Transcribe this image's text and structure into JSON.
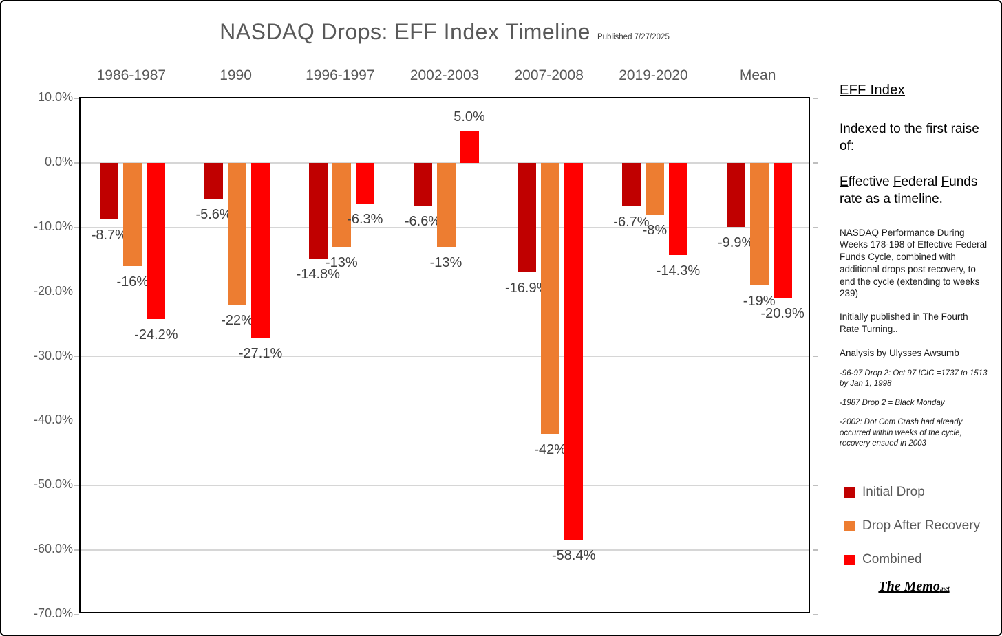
{
  "title": "NASDAQ Drops: EFF Index Timeline",
  "published": "Published 7/27/2025",
  "chart_data": {
    "type": "bar",
    "title": "NASDAQ Drops: EFF Index Timeline",
    "categories": [
      "1986-1987",
      "1990",
      "1996-1997",
      "2002-2003",
      "2007-2008",
      "2019-2020",
      "Mean"
    ],
    "series": [
      {
        "name": "Initial Drop",
        "color": "#C00000",
        "values": [
          -8.7,
          -5.6,
          -14.8,
          -6.6,
          -16.9,
          -6.7,
          -9.9
        ],
        "labels": [
          "-8.7%",
          "-5.6%",
          "-14.8%",
          "-6.6%",
          "-16.9%",
          "-6.7%",
          "-9.9%"
        ]
      },
      {
        "name": "Drop After Recovery",
        "color": "#ED7D31",
        "values": [
          -16,
          -22,
          -13,
          -13,
          -42,
          -8,
          -19
        ],
        "labels": [
          "-16%",
          "-22%",
          "-13%",
          "-13%",
          "-42%",
          "-8%",
          "-19%"
        ]
      },
      {
        "name": "Combined",
        "color": "#FF0000",
        "values": [
          -24.2,
          -27.1,
          -6.3,
          5.0,
          -58.4,
          -14.3,
          -20.9
        ],
        "labels": [
          "-24.2%",
          "-27.1%",
          "-6.3%",
          "5.0%",
          "-58.4%",
          "-14.3%",
          "-20.9%"
        ]
      }
    ],
    "ylim": [
      -70,
      10
    ],
    "ytick_step": 10,
    "ytick_labels": [
      "10.0%",
      "0.0%",
      "-10.0%",
      "-20.0%",
      "-30.0%",
      "-40.0%",
      "-50.0%",
      "-60.0%",
      "-70.0%"
    ],
    "grid": true,
    "legend_position": "right-panel",
    "xlabel": "",
    "ylabel": ""
  },
  "sidebar": {
    "heading": "EFF Index",
    "sub1": "Indexed to the first raise of:",
    "eff_parts": [
      {
        "u": "E",
        "t": "ffective "
      },
      {
        "u": "F",
        "t": "ederal "
      },
      {
        "u": "F",
        "t": "unds rate as a timeline."
      }
    ],
    "para1": "NASDAQ Performance During Weeks 178-198 of Effective Federal Funds Cycle, combined with additional drops post recovery, to end the cycle (extending to weeks 239)",
    "para2": "Initially published in The Fourth Rate Turning..",
    "para3": "Analysis by Ulysses Awsumb",
    "notes": [
      "-96-97 Drop 2: Oct 97 ICIC =1737 to 1513 by Jan 1, 1998",
      "-1987 Drop 2 = Black Monday",
      "-2002: Dot Com Crash had already occurred within weeks of the cycle, recovery ensued in 2003"
    ],
    "brand": "The Memo",
    "brand_suffix": ".net"
  }
}
